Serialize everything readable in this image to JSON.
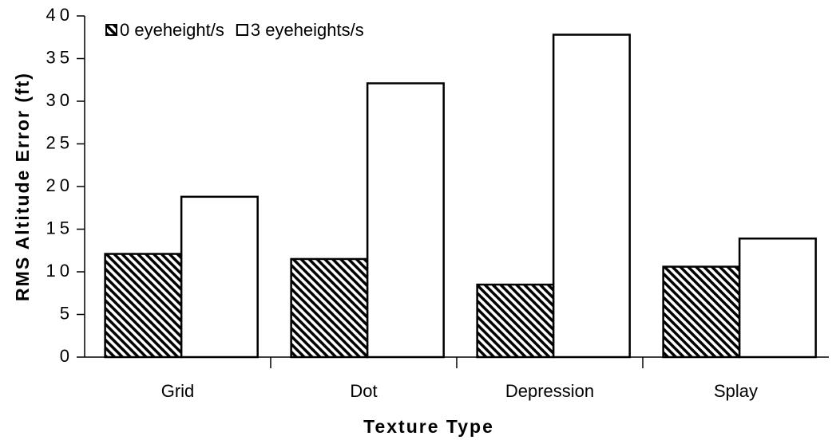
{
  "chart_data": {
    "type": "bar",
    "xlabel": "Texture Type",
    "ylabel": "RMS Altitude Error (ft)",
    "categories": [
      "Grid",
      "Dot",
      "Depression",
      "Splay"
    ],
    "series": [
      {
        "name": "0 eyeheight/s",
        "color": "#000000",
        "hatch": true,
        "values": [
          12.1,
          11.5,
          8.5,
          10.6
        ]
      },
      {
        "name": "3 eyeheights/s",
        "color": "#ffffff",
        "hatch": false,
        "values": [
          18.8,
          32.1,
          37.8,
          13.9
        ]
      }
    ],
    "ylim": [
      0,
      40
    ],
    "yticks": [
      0,
      5,
      10,
      15,
      20,
      25,
      30,
      35,
      40
    ],
    "legend": "top-left",
    "grid": false
  }
}
